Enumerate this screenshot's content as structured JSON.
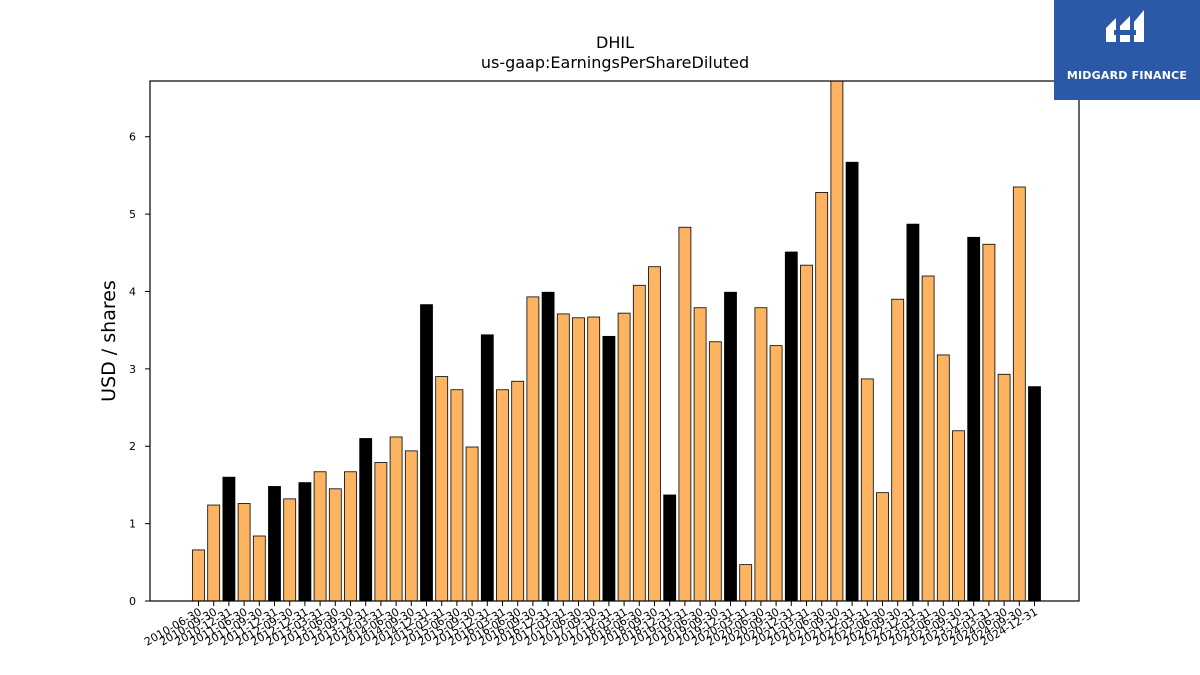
{
  "logo": {
    "text": "MIDGARD FINANCE",
    "color": "#2b59a8"
  },
  "colors": {
    "quarterly": "#fdb462",
    "annual": "#000000"
  },
  "chart_data": {
    "type": "bar",
    "title": "DHIL",
    "subtitle": "us-gaap:EarningsPerShareDiluted",
    "xlabel": "",
    "ylabel": "USD / shares",
    "ylim": [
      0,
      6.72
    ],
    "yticks": [
      0,
      1,
      2,
      3,
      4,
      5,
      6
    ],
    "grid": false,
    "categories": [
      "2010-06-30",
      "2010-09-30",
      "2010-12-31",
      "2011-06-30",
      "2011-09-30",
      "2011-12-31",
      "2012-09-30",
      "2012-12-31",
      "2013-03-31",
      "2013-06-30",
      "2013-09-30",
      "2013-12-31",
      "2014-03-31",
      "2014-06-30",
      "2014-09-30",
      "2014-12-31",
      "2015-03-31",
      "2015-06-30",
      "2015-09-30",
      "2015-12-31",
      "2016-03-31",
      "2016-06-30",
      "2016-09-30",
      "2016-12-31",
      "2017-03-31",
      "2017-06-30",
      "2017-09-30",
      "2017-12-31",
      "2018-03-31",
      "2018-06-30",
      "2018-09-30",
      "2018-12-31",
      "2019-03-31",
      "2019-06-30",
      "2019-09-30",
      "2019-12-31",
      "2020-03-31",
      "2020-06-30",
      "2020-09-30",
      "2020-12-31",
      "2021-03-31",
      "2021-06-30",
      "2021-09-30",
      "2021-12-31",
      "2022-03-31",
      "2022-06-30",
      "2022-09-30",
      "2022-12-31",
      "2023-03-31",
      "2023-06-30",
      "2023-09-30",
      "2023-12-31",
      "2024-03-31",
      "2024-06-30",
      "2024-09-30",
      "2024-12-31"
    ],
    "series": [
      {
        "values": [
          0.66,
          1.24,
          1.6,
          1.26,
          0.84,
          1.48,
          1.32,
          1.53,
          1.67,
          1.45,
          1.67,
          2.1,
          1.79,
          2.12,
          1.94,
          3.83,
          2.9,
          2.73,
          1.99,
          3.44,
          2.73,
          2.84,
          3.93,
          3.99,
          3.71,
          3.66,
          3.67,
          3.42,
          3.72,
          4.08,
          4.32,
          1.37,
          4.83,
          3.79,
          3.35,
          3.99,
          0.47,
          3.79,
          3.3,
          4.51,
          4.34,
          5.28,
          6.78,
          5.67,
          2.87,
          1.4,
          3.9,
          4.87,
          4.2,
          3.18,
          2.2,
          4.7,
          4.61,
          2.93,
          5.35,
          2.77
        ],
        "kinds": [
          "q",
          "q",
          "a",
          "q",
          "q",
          "a",
          "q",
          "a",
          "q",
          "q",
          "q",
          "a",
          "q",
          "q",
          "q",
          "a",
          "q",
          "q",
          "q",
          "a",
          "q",
          "q",
          "q",
          "a",
          "q",
          "q",
          "q",
          "a",
          "q",
          "q",
          "q",
          "a",
          "q",
          "q",
          "q",
          "a",
          "q",
          "q",
          "q",
          "a",
          "q",
          "q",
          "q",
          "a",
          "q",
          "q",
          "q",
          "a",
          "q",
          "q",
          "q",
          "a",
          "q",
          "q",
          "q",
          "a"
        ]
      }
    ]
  }
}
